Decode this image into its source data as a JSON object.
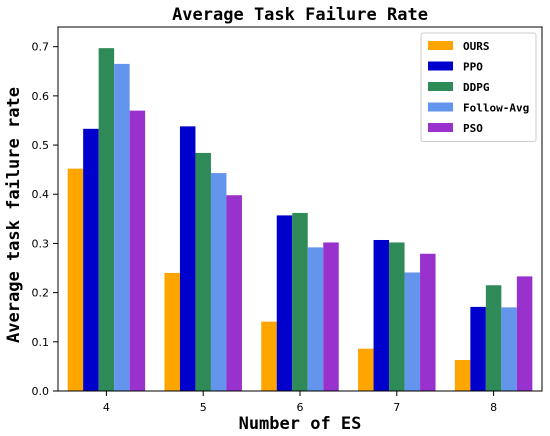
{
  "chart_data": {
    "type": "bar",
    "title": "Average Task Failure Rate",
    "xlabel": "Number of ES",
    "ylabel": "Average task failure rate",
    "categories": [
      "4",
      "5",
      "6",
      "7",
      "8"
    ],
    "ylim": [
      0,
      0.74
    ],
    "yticks": [
      "0.0",
      "0.1",
      "0.2",
      "0.3",
      "0.4",
      "0.5",
      "0.6",
      "0.7"
    ],
    "grid": false,
    "legend_position": "top-right",
    "series": [
      {
        "name": "OURS",
        "color": "#FFA500",
        "values": [
          0.452,
          0.24,
          0.141,
          0.086,
          0.063
        ]
      },
      {
        "name": "PPO",
        "color": "#0000CD",
        "values": [
          0.533,
          0.538,
          0.357,
          0.307,
          0.171
        ]
      },
      {
        "name": "DDPG",
        "color": "#2E8B57",
        "values": [
          0.697,
          0.484,
          0.362,
          0.302,
          0.215
        ]
      },
      {
        "name": "Follow-Avg",
        "color": "#6495ED",
        "values": [
          0.665,
          0.443,
          0.292,
          0.241,
          0.17
        ]
      },
      {
        "name": "PSO",
        "color": "#9932CC",
        "values": [
          0.57,
          0.398,
          0.302,
          0.279,
          0.233
        ]
      }
    ]
  }
}
